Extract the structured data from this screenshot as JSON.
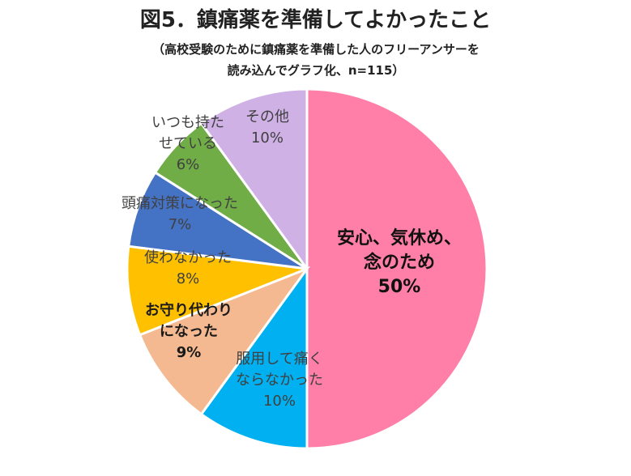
{
  "title": "図5．鎮痛薬を準備してよかったこと",
  "subtitle_line1": "（高校受験のために鎮痛薬を準備した人のフリーアンサーを",
  "subtitle_line2": "読み込んでグラフ化、n=115）",
  "chart_data": {
    "type": "pie",
    "start": "top",
    "direction": "clockwise",
    "slices": [
      {
        "label_lines": [
          "安心、気休め、",
          "念のため"
        ],
        "pct_label": "50%",
        "value": 50,
        "color": "#FF7FA8",
        "style": "big"
      },
      {
        "label_lines": [
          "服用して痛く",
          "ならなかった"
        ],
        "pct_label": "10%",
        "value": 10,
        "color": "#00B0F0",
        "style": "normal"
      },
      {
        "label_lines": [
          "お守り代わり",
          "になった"
        ],
        "pct_label": "9%",
        "value": 9,
        "color": "#F4B990",
        "style": "bold"
      },
      {
        "label_lines": [
          "使わなかった"
        ],
        "pct_label": "8%",
        "value": 8,
        "color": "#FFC000",
        "style": "normal"
      },
      {
        "label_lines": [
          "頭痛対策になった"
        ],
        "pct_label": "7%",
        "value": 7,
        "color": "#4472C4",
        "style": "normal"
      },
      {
        "label_lines": [
          "いつも持た",
          "せている"
        ],
        "pct_label": "6%",
        "value": 6,
        "color": "#70AD47",
        "style": "normal"
      },
      {
        "label_lines": [
          "その他"
        ],
        "pct_label": "10%",
        "value": 10,
        "color": "#CFB1E6",
        "style": "normal"
      }
    ]
  }
}
